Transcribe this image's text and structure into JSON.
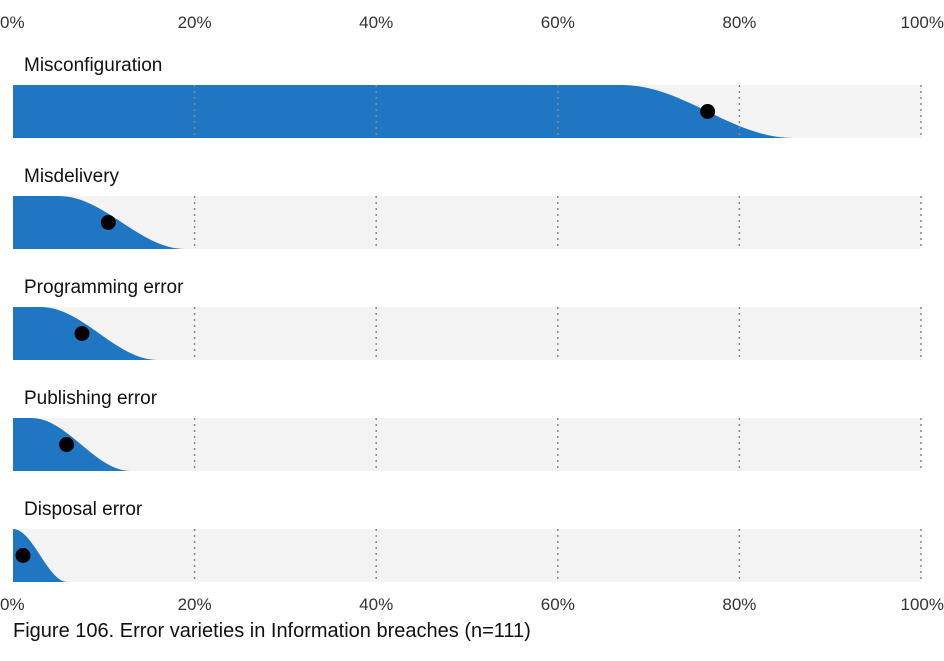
{
  "chart_data": {
    "type": "area",
    "title": "",
    "x_ticks": [
      "0%",
      "20%",
      "40%",
      "60%",
      "80%",
      "100%"
    ],
    "xlim": [
      0,
      100
    ],
    "grid": true,
    "colors": {
      "fill": "#1f77c4",
      "band": "#f3f3f3",
      "dot": "#000000",
      "grid": "#888888"
    },
    "series": [
      {
        "name": "Misconfiguration",
        "estimate": 76.5,
        "full_until": 67,
        "zero_at": 86
      },
      {
        "name": "Misdelivery",
        "estimate": 10.5,
        "full_until": 5,
        "zero_at": 19
      },
      {
        "name": "Programming error",
        "estimate": 7.6,
        "full_until": 3,
        "zero_at": 16
      },
      {
        "name": "Publishing error",
        "estimate": 5.9,
        "full_until": 2,
        "zero_at": 13
      },
      {
        "name": "Disposal error",
        "estimate": 1.1,
        "full_until": 0,
        "zero_at": 6
      }
    ]
  },
  "caption": "Figure 106. Error varieties in Information breaches (n=111)"
}
